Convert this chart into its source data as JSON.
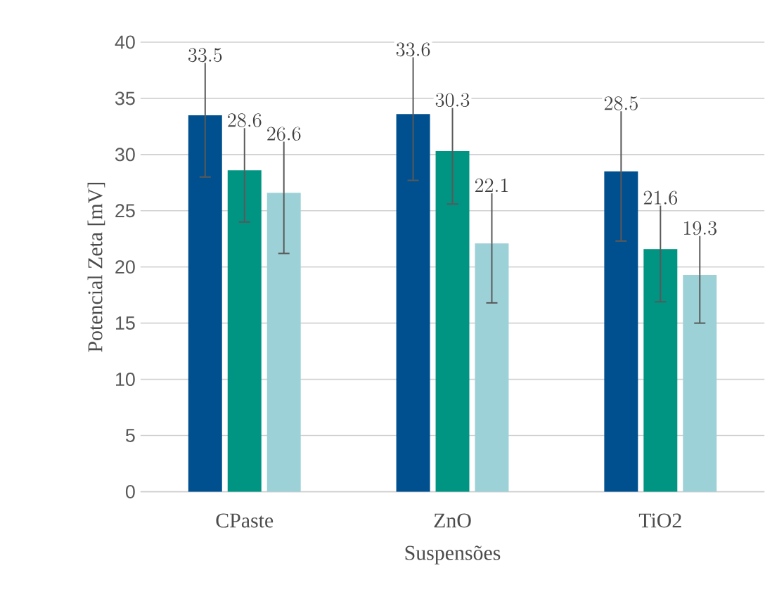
{
  "chart_data": {
    "type": "bar",
    "xlabel": "Suspensões",
    "ylabel": "Potencial Zeta [mV]",
    "categories": [
      "CPaste",
      "ZnO",
      "TiO2"
    ],
    "series": [
      {
        "color": "#00508f",
        "values": [
          33.5,
          33.6,
          28.5
        ],
        "errors": [
          5.5,
          5.9,
          6.2
        ]
      },
      {
        "color": "#009483",
        "values": [
          28.6,
          30.3,
          21.6
        ],
        "errors": [
          4.6,
          4.7,
          4.7
        ]
      },
      {
        "color": "#9dd1d8",
        "values": [
          26.6,
          22.1,
          19.3
        ],
        "errors": [
          5.4,
          5.3,
          4.3
        ]
      }
    ],
    "ylim": [
      0,
      40
    ],
    "yticks": [
      0,
      5,
      10,
      15,
      20,
      25,
      30,
      35,
      40
    ],
    "grid": "y",
    "data_labels": true
  }
}
